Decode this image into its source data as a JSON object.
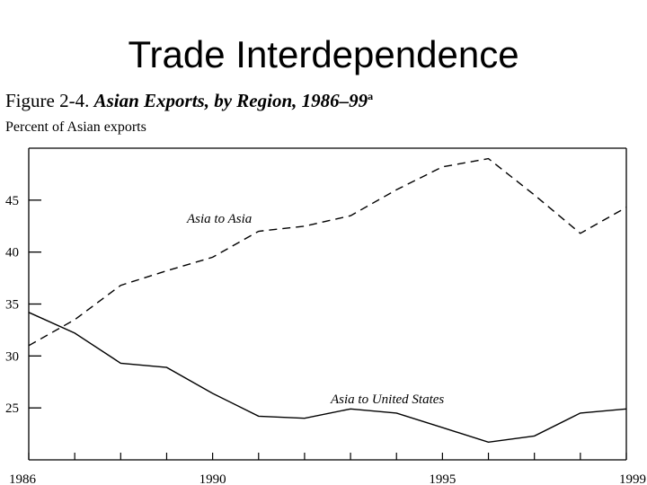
{
  "slide": {
    "title": "Trade Interdependence"
  },
  "figure": {
    "number": "Figure 2-4.",
    "name": "Asian Exports, by Region, 1986–99",
    "note_marker": "a"
  },
  "chart_data": {
    "type": "line",
    "ylabel": "Percent of Asian exports",
    "xlabel": "",
    "x": [
      1986,
      1987,
      1988,
      1989,
      1990,
      1991,
      1992,
      1993,
      1994,
      1995,
      1996,
      1997,
      1998,
      1999
    ],
    "xticks": [
      "1986",
      "1990",
      "1995",
      "1999"
    ],
    "yticks": [
      "25",
      "30",
      "35",
      "40",
      "45"
    ],
    "ylim": [
      20,
      50
    ],
    "xlim": [
      1986,
      1999
    ],
    "grid": false,
    "legend": "none",
    "series": [
      {
        "name": "Asia to Asia",
        "style": "dashed",
        "values": [
          31.0,
          33.5,
          36.8,
          38.2,
          39.5,
          42.0,
          42.5,
          43.5,
          46.0,
          48.2,
          49.0,
          45.5,
          41.8,
          44.3
        ]
      },
      {
        "name": "Asia to United States",
        "style": "solid",
        "values": [
          34.2,
          32.2,
          29.3,
          28.9,
          26.4,
          24.2,
          24.0,
          24.9,
          24.5,
          23.1,
          21.7,
          22.3,
          24.5,
          24.9
        ]
      }
    ]
  }
}
